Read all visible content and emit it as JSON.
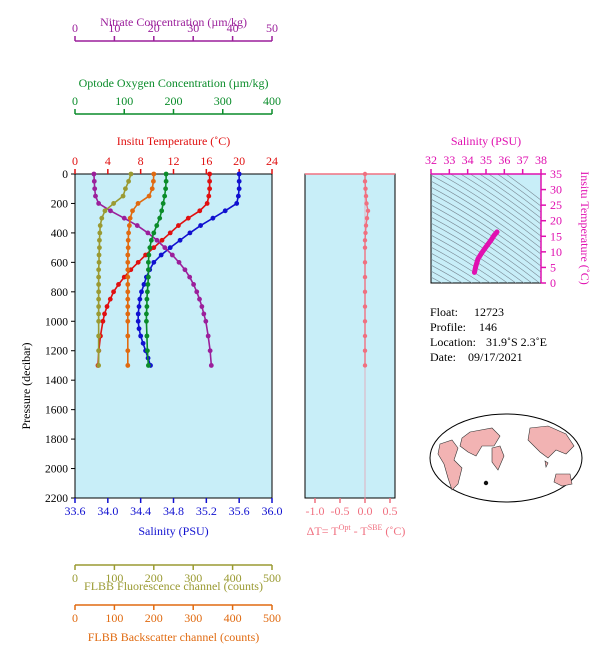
{
  "colors": {
    "nitrate": "#9b1f9b",
    "oxygen": "#0a8c2a",
    "temperature": "#e01010",
    "salinity": "#1010d0",
    "fluorescence": "#9a9a32",
    "backscatter": "#e06a10",
    "delta_t": "#f07080",
    "ts_line": "#e010b0",
    "panel_bg": "#c8eef8",
    "land": "#f2b3b3"
  },
  "info": {
    "float_label": "Float:",
    "float_value": "12723",
    "profile_label": "Profile:",
    "profile_value": "146",
    "location_label": "Location:",
    "location_value": "31.9˚S   2.3˚E",
    "date_label": "Date:",
    "date_value": "09/17/2021"
  },
  "chart_data": [
    {
      "type": "line",
      "name": "main-profile",
      "y_axis": {
        "label": "Pressure (decibar)",
        "ticks": [
          0,
          200,
          400,
          600,
          800,
          1000,
          1200,
          1400,
          1600,
          1800,
          2000,
          2200
        ],
        "range": [
          0,
          2200
        ],
        "inverted": true
      },
      "axes": {
        "nitrate": {
          "label": "Nitrate Concentration (µm/kg)",
          "range": [
            0,
            50
          ],
          "ticks": [
            0,
            10,
            20,
            30,
            40,
            50
          ]
        },
        "oxygen": {
          "label": "Optode Oxygen Concentration (µm/kg)",
          "range": [
            0,
            400
          ],
          "ticks": [
            0,
            100,
            200,
            300,
            400
          ]
        },
        "temperature": {
          "label": "Insitu Temperature (˚C)",
          "range": [
            0,
            24
          ],
          "ticks": [
            0,
            4,
            8,
            12,
            16,
            20,
            24
          ]
        },
        "salinity": {
          "label": "Salinity (PSU)",
          "range": [
            33.6,
            36.0
          ],
          "ticks": [
            "33.6",
            "34.0",
            "34.4",
            "34.8",
            "35.2",
            "35.6",
            "36.0"
          ]
        },
        "fluorescence": {
          "label": "FLBB Fluorescence channel (counts)",
          "range": [
            0,
            500
          ],
          "ticks": [
            0,
            100,
            200,
            300,
            400,
            500
          ]
        },
        "backscatter": {
          "label": "FLBB Backscatter channel (counts)",
          "range": [
            0,
            500
          ],
          "ticks": [
            0,
            100,
            200,
            300,
            400,
            500
          ]
        }
      },
      "series": [
        {
          "key": "temperature",
          "points": [
            [
              0,
              16.4
            ],
            [
              50,
              16.4
            ],
            [
              100,
              16.4
            ],
            [
              150,
              16.3
            ],
            [
              200,
              16.1
            ],
            [
              250,
              15.2
            ],
            [
              300,
              13.8
            ],
            [
              350,
              12.6
            ],
            [
              400,
              11.6
            ],
            [
              450,
              10.6
            ],
            [
              500,
              9.6
            ],
            [
              550,
              8.6
            ],
            [
              600,
              7.7
            ],
            [
              650,
              6.8
            ],
            [
              700,
              6.0
            ],
            [
              750,
              5.3
            ],
            [
              800,
              4.7
            ],
            [
              850,
              4.3
            ],
            [
              900,
              3.9
            ],
            [
              950,
              3.6
            ],
            [
              1000,
              3.4
            ],
            [
              1100,
              3.1
            ],
            [
              1200,
              2.9
            ],
            [
              1300,
              2.8
            ]
          ]
        },
        {
          "key": "salinity",
          "points": [
            [
              0,
              35.6
            ],
            [
              50,
              35.6
            ],
            [
              100,
              35.6
            ],
            [
              150,
              35.59
            ],
            [
              200,
              35.57
            ],
            [
              250,
              35.43
            ],
            [
              300,
              35.28
            ],
            [
              350,
              35.13
            ],
            [
              400,
              35.0
            ],
            [
              450,
              34.88
            ],
            [
              500,
              34.76
            ],
            [
              550,
              34.65
            ],
            [
              600,
              34.56
            ],
            [
              650,
              34.51
            ],
            [
              700,
              34.47
            ],
            [
              750,
              34.44
            ],
            [
              800,
              34.41
            ],
            [
              850,
              34.39
            ],
            [
              900,
              34.38
            ],
            [
              950,
              34.37
            ],
            [
              1000,
              34.37
            ],
            [
              1050,
              34.38
            ],
            [
              1100,
              34.4
            ],
            [
              1150,
              34.43
            ],
            [
              1200,
              34.46
            ],
            [
              1250,
              34.49
            ],
            [
              1300,
              34.52
            ]
          ]
        },
        {
          "key": "nitrate",
          "points": [
            [
              0,
              4.8
            ],
            [
              50,
              4.9
            ],
            [
              100,
              5.0
            ],
            [
              150,
              5.2
            ],
            [
              200,
              6.0
            ],
            [
              250,
              9.0
            ],
            [
              300,
              12.5
            ],
            [
              350,
              15.8
            ],
            [
              400,
              18.5
            ],
            [
              450,
              20.8
            ],
            [
              500,
              22.8
            ],
            [
              550,
              24.7
            ],
            [
              600,
              26.4
            ],
            [
              650,
              27.9
            ],
            [
              700,
              29.1
            ],
            [
              750,
              30.1
            ],
            [
              800,
              30.9
            ],
            [
              850,
              31.6
            ],
            [
              900,
              32.2
            ],
            [
              950,
              32.7
            ],
            [
              1000,
              33.2
            ],
            [
              1100,
              33.8
            ],
            [
              1200,
              34.3
            ],
            [
              1300,
              34.6
            ]
          ]
        },
        {
          "key": "oxygen",
          "points": [
            [
              0,
              185
            ],
            [
              50,
              185
            ],
            [
              100,
              184
            ],
            [
              150,
              182
            ],
            [
              200,
              179
            ],
            [
              250,
              176
            ],
            [
              300,
              172
            ],
            [
              350,
              166
            ],
            [
              400,
              160
            ],
            [
              450,
              155
            ],
            [
              500,
              152
            ],
            [
              550,
              150
            ],
            [
              600,
              149
            ],
            [
              650,
              149
            ],
            [
              700,
              149
            ],
            [
              750,
              148
            ],
            [
              800,
              147
            ],
            [
              850,
              146
            ],
            [
              900,
              146
            ],
            [
              950,
              145
            ],
            [
              1000,
              145
            ],
            [
              1100,
              146
            ],
            [
              1200,
              147
            ],
            [
              1300,
              149
            ]
          ]
        },
        {
          "key": "fluorescence",
          "points": [
            [
              0,
              142
            ],
            [
              50,
              136
            ],
            [
              100,
              128
            ],
            [
              150,
              122
            ],
            [
              200,
              98
            ],
            [
              250,
              76
            ],
            [
              300,
              68
            ],
            [
              350,
              64
            ],
            [
              400,
              63
            ],
            [
              450,
              62
            ],
            [
              500,
              62
            ],
            [
              550,
              61
            ],
            [
              600,
              61
            ],
            [
              650,
              60
            ],
            [
              700,
              60
            ],
            [
              750,
              60
            ],
            [
              800,
              60
            ],
            [
              850,
              60
            ],
            [
              900,
              60
            ],
            [
              950,
              60
            ],
            [
              1000,
              60
            ],
            [
              1100,
              60
            ],
            [
              1200,
              60
            ],
            [
              1300,
              60
            ]
          ]
        },
        {
          "key": "backscatter",
          "points": [
            [
              0,
              200
            ],
            [
              50,
              199
            ],
            [
              100,
              196
            ],
            [
              150,
              188
            ],
            [
              200,
              160
            ],
            [
              250,
              146
            ],
            [
              300,
              140
            ],
            [
              350,
              138
            ],
            [
              400,
              136
            ],
            [
              450,
              135
            ],
            [
              500,
              135
            ],
            [
              550,
              134
            ],
            [
              600,
              134
            ],
            [
              650,
              134
            ],
            [
              700,
              134
            ],
            [
              750,
              134
            ],
            [
              800,
              134
            ],
            [
              850,
              134
            ],
            [
              900,
              134
            ],
            [
              950,
              134
            ],
            [
              1000,
              134
            ],
            [
              1100,
              134
            ],
            [
              1200,
              134
            ],
            [
              1300,
              134
            ]
          ]
        }
      ]
    },
    {
      "type": "line",
      "name": "delta-t",
      "xlabel_parts": [
        "ΔT= T",
        "Opt",
        " - T",
        "SBE",
        " (˚C)"
      ],
      "x_axis": {
        "range": [
          -1.2,
          0.6
        ],
        "ticks": [
          "-1.0",
          "-0.5",
          "0.0",
          "0.5"
        ],
        "tick_values": [
          -1.0,
          -0.5,
          0.0,
          0.5
        ]
      },
      "y_range": [
        0,
        2200
      ],
      "points": [
        [
          0,
          0.0
        ],
        [
          50,
          0.0
        ],
        [
          100,
          0.01
        ],
        [
          150,
          0.02
        ],
        [
          200,
          0.03
        ],
        [
          250,
          0.06
        ],
        [
          300,
          0.04
        ],
        [
          350,
          0.02
        ],
        [
          400,
          0.01
        ],
        [
          450,
          0.0
        ],
        [
          500,
          0.0
        ],
        [
          600,
          0.0
        ],
        [
          700,
          0.0
        ],
        [
          800,
          0.0
        ],
        [
          900,
          0.0
        ],
        [
          1000,
          0.0
        ],
        [
          1100,
          0.0
        ],
        [
          1200,
          0.0
        ],
        [
          1300,
          0.0
        ]
      ]
    },
    {
      "type": "line",
      "name": "ts-diagram",
      "x_axis": {
        "label": "Salinity (PSU)",
        "range": [
          32,
          38
        ],
        "ticks": [
          32,
          33,
          34,
          35,
          36,
          37,
          38
        ]
      },
      "y_axis": {
        "label": "Insitu Temperature (˚C)",
        "range": [
          0,
          35
        ],
        "ticks": [
          0,
          5,
          10,
          15,
          20,
          25,
          30,
          35
        ]
      },
      "points": [
        [
          34.37,
          3.4
        ],
        [
          34.44,
          5.3
        ],
        [
          34.56,
          7.7
        ],
        [
          34.76,
          9.6
        ],
        [
          35.0,
          11.6
        ],
        [
          35.28,
          13.8
        ],
        [
          35.43,
          15.2
        ],
        [
          35.6,
          16.4
        ]
      ]
    }
  ]
}
